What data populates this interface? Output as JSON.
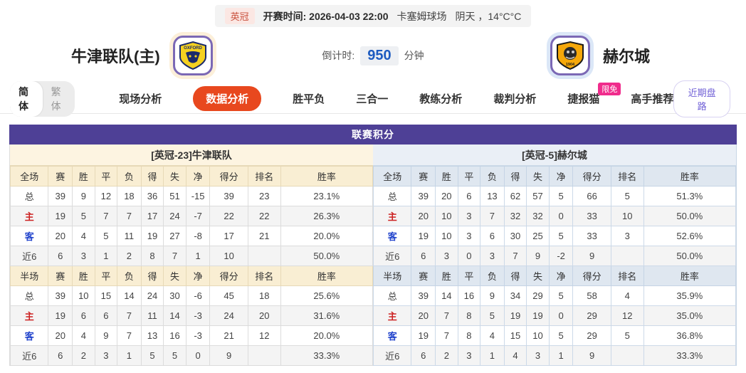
{
  "top_bar": {
    "league_badge": "英冠",
    "kickoff": "开赛时间: 2026-04-03 22:00",
    "venue": "卡塞姆球场",
    "weather": "阴天 ，14°C°C"
  },
  "match_header": {
    "home_name": "牛津联队(主)",
    "away_name": "赫尔城",
    "home_logo_text": "OXFORD",
    "away_logo_text": "1904",
    "countdown_label": "倒计时:",
    "countdown_value": "950",
    "countdown_unit": "分钟"
  },
  "nav": {
    "lang_simplified": "简体",
    "lang_traditional": "繁体",
    "tabs": [
      {
        "label": "现场分析",
        "active": false
      },
      {
        "label": "数据分析",
        "active": true
      },
      {
        "label": "胜平负",
        "active": false
      },
      {
        "label": "三合一",
        "active": false
      },
      {
        "label": "教练分析",
        "active": false
      },
      {
        "label": "裁判分析",
        "active": false
      },
      {
        "label": "捷报猫",
        "active": false,
        "badge": "限免"
      },
      {
        "label": "高手推荐",
        "active": false
      }
    ],
    "recent_button": "近期盘路"
  },
  "standings": {
    "title": "联赛积分",
    "section_labels": {
      "full": "全场",
      "half": "半场"
    },
    "columns": [
      "赛",
      "胜",
      "平",
      "负",
      "得",
      "失",
      "净",
      "得分",
      "排名",
      "胜率"
    ],
    "home": {
      "team_header": "[英冠-23]牛津联队",
      "full": [
        {
          "label": "总",
          "type": "total",
          "values": [
            "39",
            "9",
            "12",
            "18",
            "36",
            "51",
            "-15",
            "39",
            "23",
            "23.1%"
          ]
        },
        {
          "label": "主",
          "type": "home",
          "values": [
            "19",
            "5",
            "7",
            "7",
            "17",
            "24",
            "-7",
            "22",
            "22",
            "26.3%"
          ]
        },
        {
          "label": "客",
          "type": "away",
          "values": [
            "20",
            "4",
            "5",
            "11",
            "19",
            "27",
            "-8",
            "17",
            "21",
            "20.0%"
          ]
        },
        {
          "label": "近6",
          "type": "recent",
          "values": [
            "6",
            "3",
            "1",
            "2",
            "8",
            "7",
            "1",
            "10",
            "",
            "50.0%"
          ]
        }
      ],
      "half": [
        {
          "label": "总",
          "type": "total",
          "values": [
            "39",
            "10",
            "15",
            "14",
            "24",
            "30",
            "-6",
            "45",
            "18",
            "25.6%"
          ]
        },
        {
          "label": "主",
          "type": "home",
          "values": [
            "19",
            "6",
            "6",
            "7",
            "11",
            "14",
            "-3",
            "24",
            "20",
            "31.6%"
          ]
        },
        {
          "label": "客",
          "type": "away",
          "values": [
            "20",
            "4",
            "9",
            "7",
            "13",
            "16",
            "-3",
            "21",
            "12",
            "20.0%"
          ]
        },
        {
          "label": "近6",
          "type": "recent",
          "values": [
            "6",
            "2",
            "3",
            "1",
            "5",
            "5",
            "0",
            "9",
            "",
            "33.3%"
          ]
        }
      ]
    },
    "away": {
      "team_header": "[英冠-5]赫尔城",
      "full": [
        {
          "label": "总",
          "type": "total",
          "values": [
            "39",
            "20",
            "6",
            "13",
            "62",
            "57",
            "5",
            "66",
            "5",
            "51.3%"
          ]
        },
        {
          "label": "主",
          "type": "home",
          "values": [
            "20",
            "10",
            "3",
            "7",
            "32",
            "32",
            "0",
            "33",
            "10",
            "50.0%"
          ]
        },
        {
          "label": "客",
          "type": "away",
          "values": [
            "19",
            "10",
            "3",
            "6",
            "30",
            "25",
            "5",
            "33",
            "3",
            "52.6%"
          ]
        },
        {
          "label": "近6",
          "type": "recent",
          "values": [
            "6",
            "3",
            "0",
            "3",
            "7",
            "9",
            "-2",
            "9",
            "",
            "50.0%"
          ]
        }
      ],
      "half": [
        {
          "label": "总",
          "type": "total",
          "values": [
            "39",
            "14",
            "16",
            "9",
            "34",
            "29",
            "5",
            "58",
            "4",
            "35.9%"
          ]
        },
        {
          "label": "主",
          "type": "home",
          "values": [
            "20",
            "7",
            "8",
            "5",
            "19",
            "19",
            "0",
            "29",
            "12",
            "35.0%"
          ]
        },
        {
          "label": "客",
          "type": "away",
          "values": [
            "19",
            "7",
            "8",
            "4",
            "15",
            "10",
            "5",
            "29",
            "5",
            "36.8%"
          ]
        },
        {
          "label": "近6",
          "type": "recent",
          "values": [
            "6",
            "2",
            "3",
            "1",
            "4",
            "3",
            "1",
            "9",
            "",
            "33.3%"
          ]
        }
      ]
    }
  }
}
